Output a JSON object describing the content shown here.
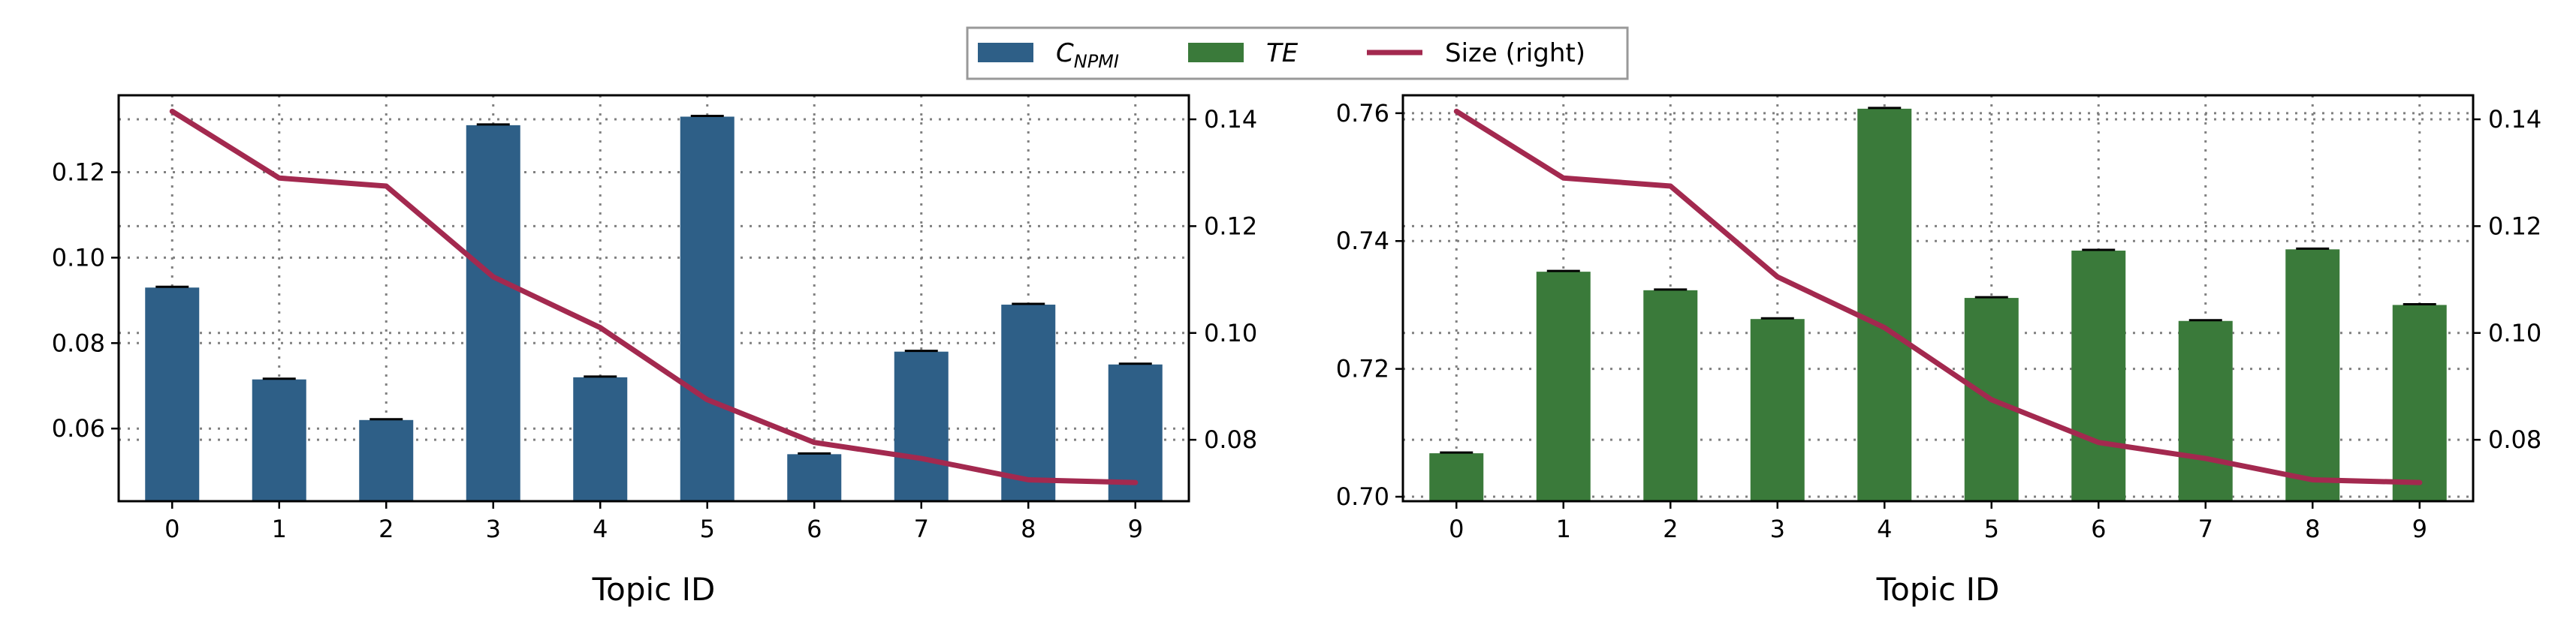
{
  "legend": {
    "position": "top-center",
    "items": [
      {
        "key": "npmi",
        "label_main": "C",
        "label_sub": "NPMI",
        "italic": true,
        "kind": "bar",
        "color": "#2e5f87"
      },
      {
        "key": "te",
        "label_main": "TE",
        "label_sub": "",
        "italic": true,
        "kind": "bar",
        "color": "#3a7a3a"
      },
      {
        "key": "size",
        "label_main": "Size (right)",
        "label_sub": "",
        "italic": false,
        "kind": "line",
        "color": "#a3294f"
      }
    ]
  },
  "colors": {
    "npmi_bar": "#2e5f87",
    "te_bar": "#3a7a3a",
    "size_line": "#a3294f",
    "grid": "#808080",
    "error_bar": "#000000"
  },
  "chart_data": [
    {
      "type": "bar",
      "name": "left",
      "xlabel": "Topic ID",
      "categories": [
        "0",
        "1",
        "2",
        "3",
        "4",
        "5",
        "6",
        "7",
        "8",
        "9"
      ],
      "series": [
        {
          "name": "C_NPMI",
          "values": [
            0.093,
            0.0715,
            0.062,
            0.131,
            0.072,
            0.133,
            0.054,
            0.078,
            0.089,
            0.075
          ]
        }
      ],
      "ylim": [
        0.043,
        0.138
      ],
      "yticks": [
        0.06,
        0.08,
        0.1,
        0.12
      ],
      "ytick_labels": [
        "0.06",
        "0.08",
        "0.10",
        "0.12"
      ],
      "line_series": {
        "name": "Size (right)",
        "values": [
          0.1415,
          0.129,
          0.1275,
          0.1105,
          0.101,
          0.0875,
          0.0795,
          0.0765,
          0.0725,
          0.072
        ]
      },
      "y2lim": [
        0.0685,
        0.1445
      ],
      "y2ticks": [
        0.08,
        0.1,
        0.12,
        0.14
      ],
      "y2tick_labels": [
        "0.08",
        "0.10",
        "0.12",
        "0.14"
      ],
      "grid": true
    },
    {
      "type": "bar",
      "name": "right",
      "xlabel": "Topic ID",
      "categories": [
        "0",
        "1",
        "2",
        "3",
        "4",
        "5",
        "6",
        "7",
        "8",
        "9"
      ],
      "series": [
        {
          "name": "TE",
          "values": [
            0.7068,
            0.7352,
            0.7323,
            0.7278,
            0.7607,
            0.7311,
            0.7385,
            0.7275,
            0.7387,
            0.73
          ]
        }
      ],
      "ylim": [
        0.6993,
        0.7628
      ],
      "yticks": [
        0.7,
        0.72,
        0.74,
        0.76
      ],
      "ytick_labels": [
        "0.70",
        "0.72",
        "0.74",
        "0.76"
      ],
      "line_series": {
        "name": "Size (right)",
        "values": [
          0.1415,
          0.129,
          0.1275,
          0.1105,
          0.101,
          0.0875,
          0.0795,
          0.0765,
          0.0725,
          0.072
        ]
      },
      "y2lim": [
        0.0685,
        0.1445
      ],
      "y2ticks": [
        0.08,
        0.1,
        0.12,
        0.14
      ],
      "y2tick_labels": [
        "0.08",
        "0.10",
        "0.12",
        "0.14"
      ],
      "grid": true
    }
  ]
}
